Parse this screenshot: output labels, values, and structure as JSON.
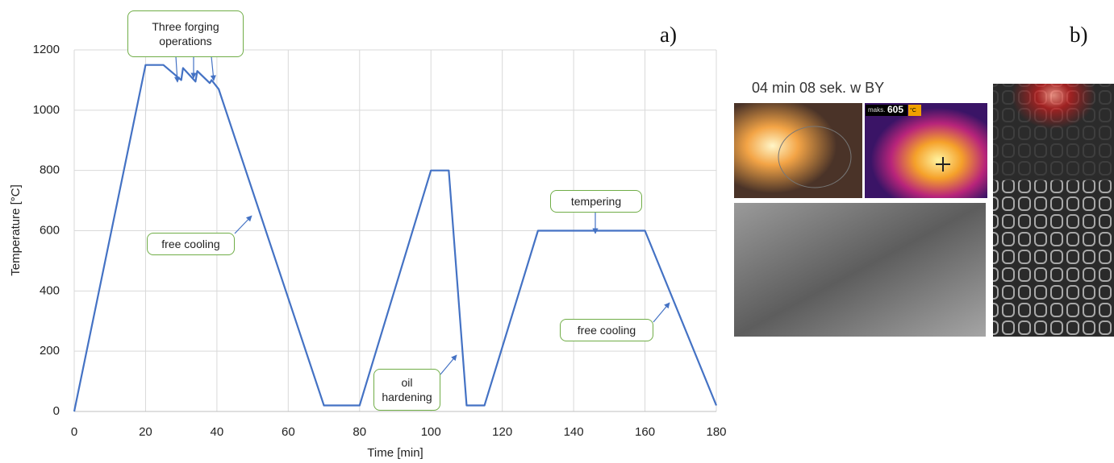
{
  "chart_data": {
    "type": "line",
    "panel_label": "a)",
    "xlabel": "Time [min]",
    "ylabel": "Temperature [°C]",
    "x": [
      0,
      20,
      25,
      30,
      30.5,
      34,
      34.5,
      38,
      38.5,
      40.5,
      70,
      80,
      100,
      105,
      110,
      115,
      130,
      160,
      180
    ],
    "values": [
      0,
      1150,
      1150,
      1100,
      1140,
      1095,
      1130,
      1090,
      1100,
      1070,
      20,
      20,
      800,
      800,
      20,
      20,
      600,
      600,
      20
    ],
    "color": "#4472c4",
    "xlim": [
      0,
      180
    ],
    "ylim": [
      0,
      1200
    ],
    "xticks": [
      0,
      20,
      40,
      60,
      80,
      100,
      120,
      140,
      160,
      180
    ],
    "yticks": [
      0,
      200,
      400,
      600,
      800,
      1000,
      1200
    ],
    "grid": true,
    "annotations": [
      "Three forging operations",
      "free cooling",
      "tempering",
      "oil hardening",
      "free cooling"
    ]
  },
  "photos": {
    "panel_label": "b)",
    "caption": "04 min 08 sek. w BY",
    "thermal_readout": {
      "label": "maks.",
      "value": 605,
      "unit": "°C"
    }
  }
}
